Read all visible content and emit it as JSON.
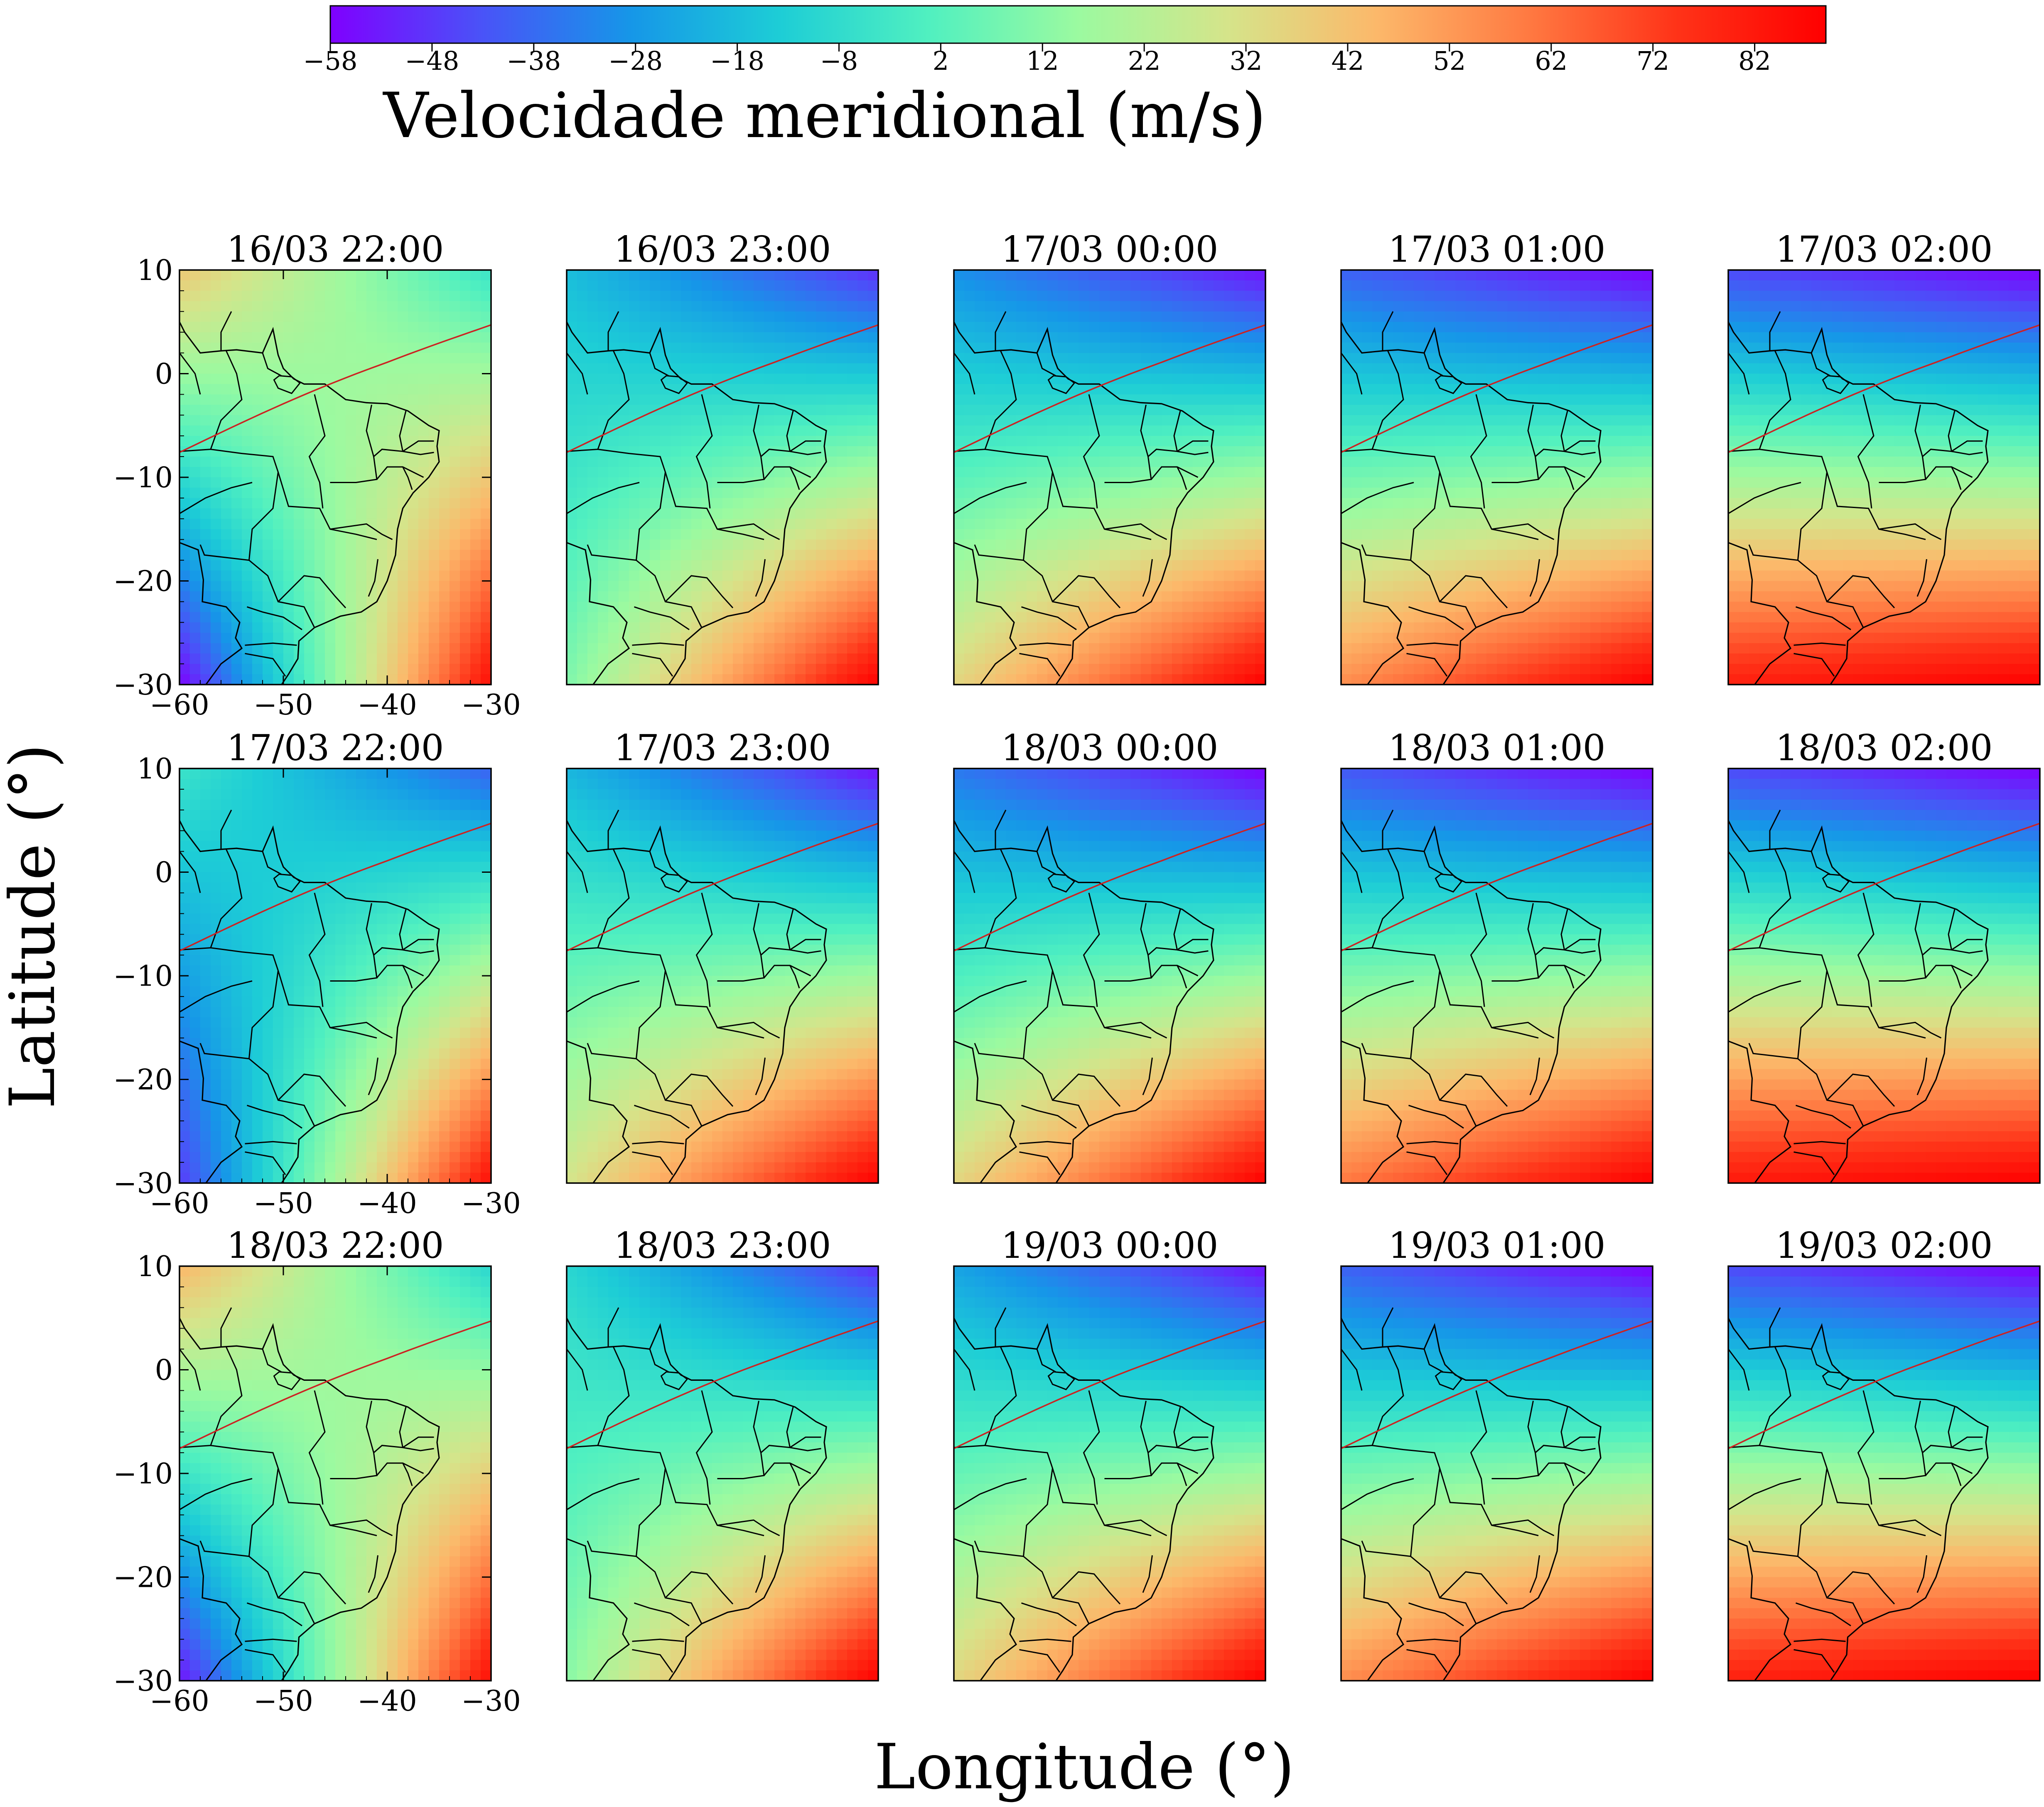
{
  "colorbar": {
    "label": "Velocidade meridional (m/s)",
    "ticks": [
      "−58",
      "−48",
      "−38",
      "−28",
      "−18",
      "−8",
      "2",
      "12",
      "22",
      "32",
      "42",
      "52",
      "62",
      "72",
      "82"
    ],
    "min": -58,
    "max": 89,
    "colormap": "rainbow",
    "stops": [
      "#7f00ff",
      "#4a52f8",
      "#1696e8",
      "#1dcdd6",
      "#50f0c0",
      "#9bfaa0",
      "#d5e48a",
      "#fcb86a",
      "#ff7a42",
      "#ff3318",
      "#ff0000"
    ]
  },
  "xlabel": "Longitude (°)",
  "ylabel": "Latitude (°)",
  "chart_data": {
    "type": "heatmap",
    "title": "",
    "xlabel": "Longitude (°)",
    "ylabel": "Latitude (°)",
    "xlim": [
      -60,
      -30
    ],
    "ylim": [
      -30,
      10
    ],
    "xticks": [
      "−60",
      "−50",
      "−40",
      "−30"
    ],
    "yticks": [
      "10",
      "0",
      "−10",
      "−20",
      "−30"
    ],
    "value_range": [
      -58,
      89
    ],
    "overlays": [
      "state boundaries",
      "magnetic dip equator (red line)"
    ],
    "panels": [
      {
        "title": "16/03 22:00",
        "nw": 40,
        "ne": -5,
        "sw": -58,
        "se": 85
      },
      {
        "title": "16/03 23:00",
        "nw": -18,
        "ne": -50,
        "sw": 10,
        "se": 89
      },
      {
        "title": "17/03 00:00",
        "nw": -30,
        "ne": -55,
        "sw": 35,
        "se": 89
      },
      {
        "title": "17/03 01:00",
        "nw": -40,
        "ne": -58,
        "sw": 55,
        "se": 89
      },
      {
        "title": "17/03 02:00",
        "nw": -45,
        "ne": -58,
        "sw": 80,
        "se": 89
      },
      {
        "title": "17/03 22:00",
        "nw": -5,
        "ne": -40,
        "sw": -48,
        "se": 85
      },
      {
        "title": "17/03 23:00",
        "nw": -20,
        "ne": -55,
        "sw": 30,
        "se": 89
      },
      {
        "title": "18/03 00:00",
        "nw": -35,
        "ne": -58,
        "sw": 35,
        "se": 89
      },
      {
        "title": "18/03 01:00",
        "nw": -42,
        "ne": -58,
        "sw": 60,
        "se": 89
      },
      {
        "title": "18/03 02:00",
        "nw": -45,
        "ne": -58,
        "sw": 82,
        "se": 89
      },
      {
        "title": "18/03 22:00",
        "nw": 45,
        "ne": -10,
        "sw": -55,
        "se": 85
      },
      {
        "title": "18/03 23:00",
        "nw": -10,
        "ne": -50,
        "sw": 12,
        "se": 89
      },
      {
        "title": "19/03 00:00",
        "nw": -25,
        "ne": -55,
        "sw": 35,
        "se": 89
      },
      {
        "title": "19/03 01:00",
        "nw": -40,
        "ne": -58,
        "sw": 55,
        "se": 89
      },
      {
        "title": "19/03 02:00",
        "nw": -45,
        "ne": -58,
        "sw": 80,
        "se": 89
      }
    ]
  }
}
